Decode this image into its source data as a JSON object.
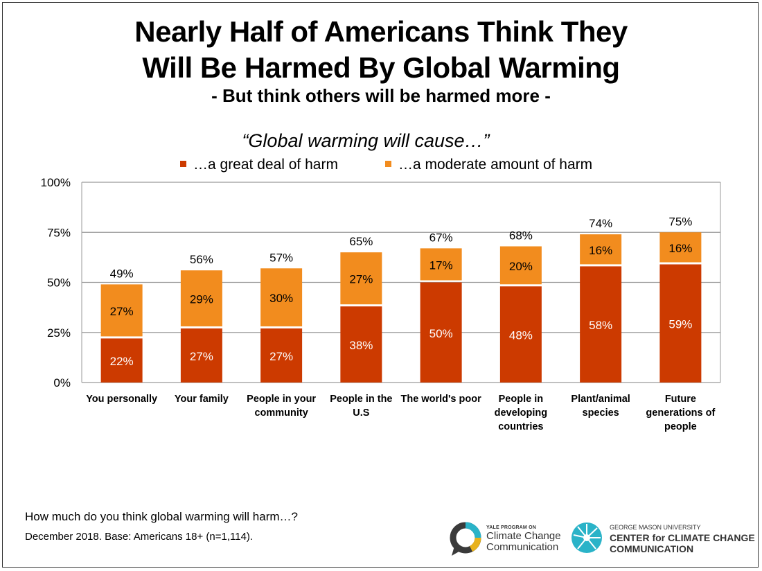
{
  "header": {
    "title_line1": "Nearly Half of Americans Think They",
    "title_line2": "Will Be Harmed By Global Warming",
    "subtitle": "- But think others will be harmed more -",
    "question": "“Global warming will cause…”"
  },
  "colors": {
    "great_deal": "#cc3a00",
    "moderate": "#f28c1e",
    "grid": "#9a9a9a",
    "yale_teal": "#2ab3c8",
    "gmu_teal": "#2ab3c8"
  },
  "chart_data": {
    "type": "bar",
    "stacked": true,
    "categories": [
      [
        "You personally"
      ],
      [
        "Your family"
      ],
      [
        "People in your",
        "community"
      ],
      [
        "People in the",
        "U.S"
      ],
      [
        "The world's poor"
      ],
      [
        "People in",
        "developing",
        "countries"
      ],
      [
        "Plant/animal",
        "species"
      ],
      [
        "Future",
        "generations of",
        "people"
      ]
    ],
    "series": [
      {
        "name": "…a great deal of harm",
        "values": [
          22,
          27,
          27,
          38,
          50,
          48,
          58,
          59
        ],
        "labels": [
          "22%",
          "27%",
          "27%",
          "38%",
          "50%",
          "48%",
          "58%",
          "59%"
        ]
      },
      {
        "name": "…a moderate amount of harm",
        "values": [
          27,
          29,
          30,
          27,
          17,
          20,
          16,
          16
        ],
        "labels": [
          "27%",
          "29%",
          "30%",
          "27%",
          "17%",
          "20%",
          "16%",
          "16%"
        ]
      }
    ],
    "totals": [
      "49%",
      "56%",
      "57%",
      "65%",
      "67%",
      "68%",
      "74%",
      "75%"
    ],
    "total_values": [
      49,
      56,
      57,
      65,
      67,
      68,
      74,
      75
    ],
    "ylim": [
      0,
      100
    ],
    "yticks": [
      0,
      25,
      50,
      75,
      100
    ],
    "ytick_labels": [
      "0%",
      "25%",
      "50%",
      "75%",
      "100%"
    ],
    "grid": true,
    "legend_position": "top-center"
  },
  "footer": {
    "question": "How much do you think global warming will harm…?",
    "base": "December 2018. Base: Americans 18+ (n=1,114)."
  },
  "logos": {
    "yale_small": "YALE PROGRAM ON",
    "yale_line1": "Climate Change",
    "yale_line2": "Communication",
    "gmu_small": "GEORGE MASON UNIVERSITY",
    "gmu_line1": "CENTER for CLIMATE CHANGE",
    "gmu_line2": "COMMUNICATION"
  }
}
